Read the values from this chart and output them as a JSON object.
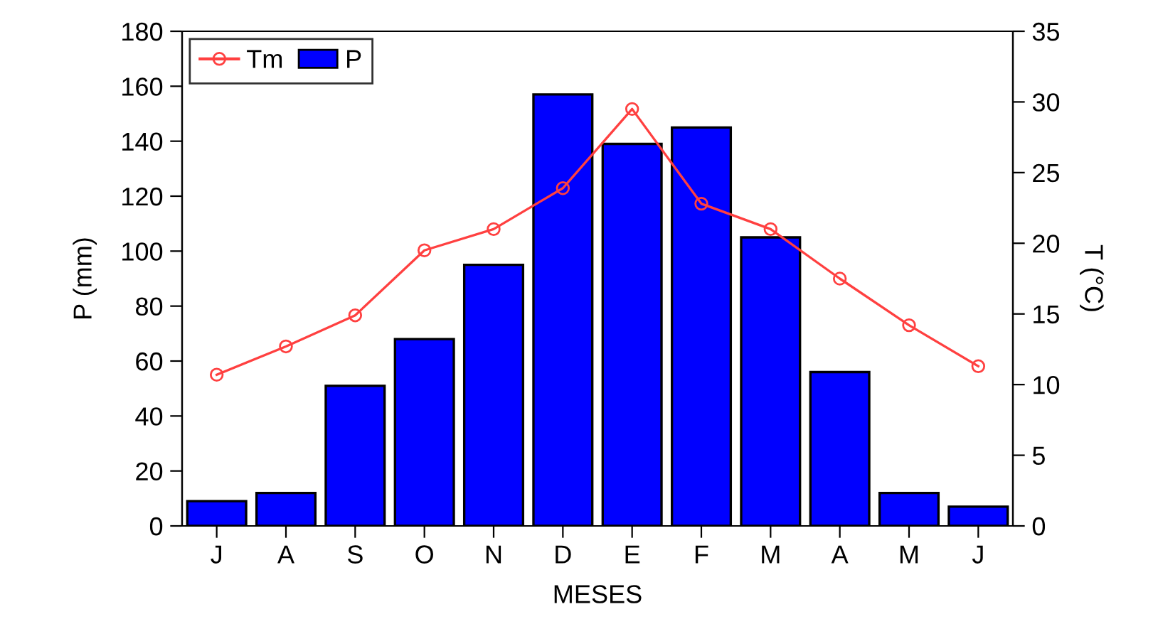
{
  "chart_data": {
    "type": "bar",
    "categories": [
      "J",
      "A",
      "S",
      "O",
      "N",
      "D",
      "E",
      "F",
      "M",
      "A",
      "M",
      "J"
    ],
    "series": [
      {
        "name": "P",
        "color": "#0000ff",
        "values": [
          9,
          12,
          51,
          68,
          95,
          157,
          139,
          145,
          105,
          56,
          12,
          7
        ]
      },
      {
        "name": "Tm",
        "type": "line",
        "axis": "y2",
        "color": "#ff4040",
        "marker": "circle",
        "values": [
          10.7,
          12.7,
          14.9,
          19.5,
          21.0,
          23.9,
          29.5,
          22.8,
          21.0,
          17.5,
          14.2,
          11.3
        ]
      }
    ],
    "xlabel": "MESES",
    "ylabel": "P (mm)",
    "y2label": "T (°C)",
    "ylim": [
      0,
      180
    ],
    "yticks": [
      0,
      20,
      40,
      60,
      80,
      100,
      120,
      140,
      160,
      180
    ],
    "y2lim": [
      0,
      35
    ],
    "y2ticks": [
      0,
      5,
      10,
      15,
      20,
      25,
      30,
      35
    ],
    "legend": "top left",
    "grid": false
  }
}
